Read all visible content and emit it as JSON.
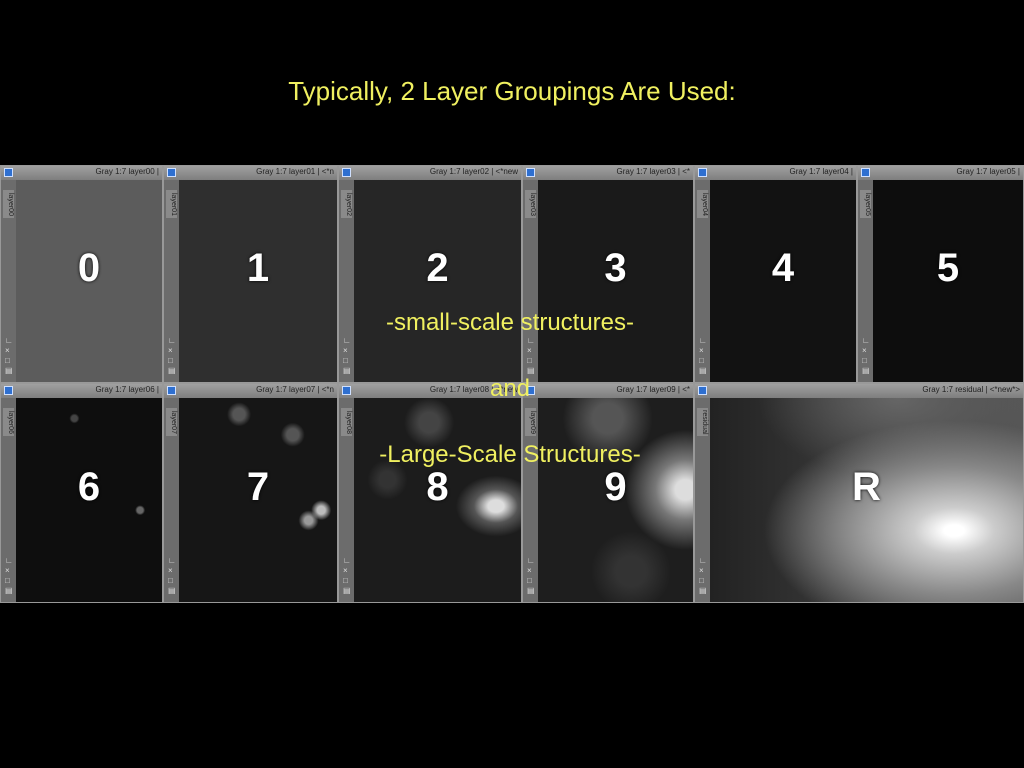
{
  "header": {
    "title": "Typically, 2 Layer Groupings Are Used:"
  },
  "windows": [
    {
      "title": "Gray 1:7 layer00 |",
      "tab": "layer00",
      "label": "0"
    },
    {
      "title": "Gray 1:7 layer01 | <*n",
      "tab": "layer01",
      "label": "1"
    },
    {
      "title": "Gray 1:7 layer02 | <*new",
      "tab": "layer02",
      "label": "2"
    },
    {
      "title": "Gray 1:7 layer03 | <*",
      "tab": "layer03",
      "label": "3"
    },
    {
      "title": "Gray 1:7 layer04 |",
      "tab": "layer04",
      "label": "4"
    },
    {
      "title": "Gray 1:7 layer05 |",
      "tab": "layer05",
      "label": "5"
    },
    {
      "title": "Gray 1:7 layer06 |",
      "tab": "layer06",
      "label": "6"
    },
    {
      "title": "Gray 1:7 layer07 | <*n",
      "tab": "layer07",
      "label": "7"
    },
    {
      "title": "Gray 1:7 layer08 | <*new",
      "tab": "layer08",
      "label": "8"
    },
    {
      "title": "Gray 1:7 layer09 | <*",
      "tab": "layer09",
      "label": "9"
    },
    {
      "title": "Gray 1:7 residual | <*new*>",
      "tab": "residual",
      "label": "R"
    }
  ],
  "overlay": {
    "line1": "-small-scale structures-",
    "line2": "and",
    "line3": "-Large-Scale Structures-"
  }
}
